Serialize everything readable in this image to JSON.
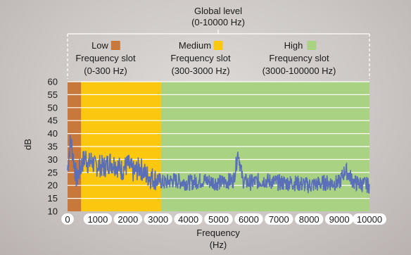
{
  "chart_data": {
    "type": "line",
    "title": "Global level",
    "subtitle": "(0-10000 Hz)",
    "xlabel": "Frequency",
    "xlabel_unit": "(Hz)",
    "ylabel": "dB",
    "xlim": [
      0,
      10000
    ],
    "ylim": [
      10,
      60
    ],
    "x_ticks": [
      "0",
      "1000",
      "2000",
      "3000",
      "4000",
      "5000",
      "6000",
      "7000",
      "8000",
      "9000",
      "10000"
    ],
    "y_ticks": [
      "60",
      "55",
      "50",
      "45",
      "40",
      "35",
      "30",
      "25",
      "20",
      "15",
      "10"
    ],
    "grid": true,
    "bands": [
      {
        "name": "Low",
        "line2": "Frequency slot",
        "range_label": "(0-300 Hz)",
        "from": 0,
        "to": 450,
        "color": "#c8783a"
      },
      {
        "name": "Medium",
        "line2": "Frequency slot",
        "range_label": "(300-3000 Hz)",
        "from": 450,
        "to": 3100,
        "color": "#fcc80f"
      },
      {
        "name": "High",
        "line2": "Frequency slot",
        "range_label": "(3000-100000 Hz)",
        "from": 3100,
        "to": 10000,
        "color": "#a9d283"
      }
    ],
    "series": [
      {
        "color": "#5a6fb8",
        "x": [
          0,
          100,
          200,
          300,
          400,
          500,
          600,
          700,
          800,
          900,
          1000,
          1200,
          1400,
          1600,
          1800,
          2000,
          2200,
          2400,
          2600,
          2800,
          3000,
          3200,
          3500,
          4000,
          4500,
          5000,
          5500,
          5650,
          5800,
          6000,
          6500,
          7000,
          7500,
          8000,
          8500,
          9000,
          9200,
          9500,
          10000
        ],
        "y": [
          26,
          38,
          30,
          22,
          26,
          29,
          31,
          28,
          30,
          27,
          28,
          27,
          29,
          28,
          26,
          28,
          25,
          27,
          24,
          23,
          22,
          21,
          22,
          21,
          22,
          21,
          22,
          33,
          22,
          21,
          22,
          21,
          21,
          20,
          21,
          21,
          26,
          21,
          20
        ]
      }
    ]
  }
}
